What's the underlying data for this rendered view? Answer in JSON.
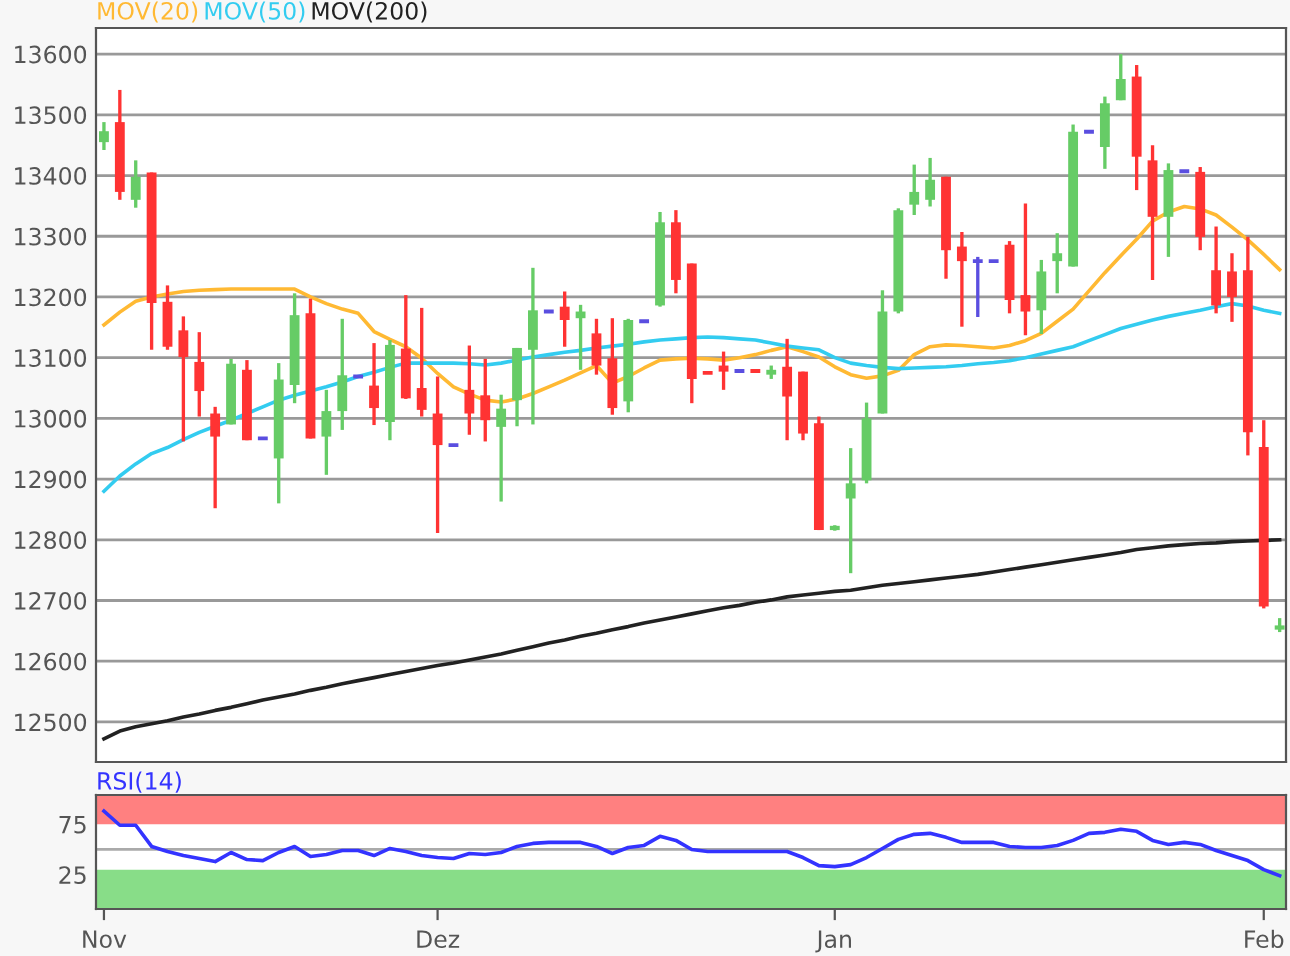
{
  "chart_data": [
    {
      "type": "candlestick",
      "categories": [
        null,
        null,
        null,
        null,
        null,
        null,
        null,
        null,
        null,
        null,
        null,
        null,
        null,
        null,
        null,
        null,
        null,
        null,
        null,
        null,
        null,
        null,
        null,
        null,
        null,
        null,
        null,
        null,
        null,
        null,
        null,
        null,
        null,
        null,
        null,
        null,
        null,
        null,
        null,
        null,
        null,
        null,
        null,
        null,
        null,
        null,
        null,
        null,
        null,
        null,
        null,
        null,
        null,
        null,
        null,
        null,
        null,
        null,
        null,
        null,
        null,
        null,
        null,
        null,
        null,
        null,
        null,
        null,
        null,
        null,
        null,
        null,
        null,
        null,
        null
      ],
      "ohlc": [
        [
          13455,
          13488,
          13442,
          13473
        ],
        [
          13488,
          13541,
          13360,
          13373
        ],
        [
          13360,
          13425,
          13347,
          13398
        ],
        [
          13405,
          13405,
          13113,
          13190
        ],
        [
          13192,
          13219,
          13113,
          13118
        ],
        [
          13145,
          13168,
          12962,
          13101
        ],
        [
          13093,
          13142,
          13003,
          13045
        ],
        [
          13008,
          13019,
          12852,
          12970
        ],
        [
          12990,
          13098,
          12990,
          13090
        ],
        [
          13080,
          13096,
          12964,
          12964
        ],
        [
          12967,
          12967,
          12967,
          12967
        ],
        [
          12934,
          13091,
          12860,
          13064
        ],
        [
          13055,
          13206,
          13025,
          13170
        ],
        [
          13173,
          13197,
          12967,
          12967
        ],
        [
          12970,
          13047,
          12907,
          13012
        ],
        [
          13012,
          13164,
          12981,
          13071
        ],
        [
          13069,
          13069,
          13069,
          13069
        ],
        [
          13054,
          13124,
          12989,
          13017
        ],
        [
          12994,
          13129,
          12964,
          13121
        ],
        [
          13115,
          13203,
          13032,
          13033
        ],
        [
          13050,
          13182,
          13003,
          13014
        ],
        [
          13008,
          13069,
          12811,
          12956
        ],
        [
          12956,
          12956,
          12956,
          12956
        ],
        [
          13047,
          13120,
          12973,
          13008
        ],
        [
          13038,
          13098,
          12962,
          12997
        ],
        [
          12986,
          13039,
          12863,
          13016
        ],
        [
          13030,
          13116,
          12987,
          13116
        ],
        [
          13113,
          13248,
          12990,
          13178
        ],
        [
          13176,
          13176,
          13176,
          13176
        ],
        [
          13184,
          13209,
          13118,
          13162
        ],
        [
          13165,
          13187,
          13080,
          13176
        ],
        [
          13140,
          13164,
          13072,
          13087
        ],
        [
          13099,
          13165,
          13006,
          13017
        ],
        [
          13028,
          13164,
          13010,
          13162
        ],
        [
          13160,
          13160,
          13160,
          13160
        ],
        [
          13186,
          13340,
          13184,
          13323
        ],
        [
          13323,
          13343,
          13206,
          13228
        ],
        [
          13255,
          13255,
          13025,
          13065
        ],
        [
          13075,
          13075,
          13075,
          13075
        ],
        [
          13087,
          13110,
          13047,
          13077
        ],
        [
          13078,
          13078,
          13078,
          13078
        ],
        [
          13078,
          13078,
          13078,
          13078
        ],
        [
          13072,
          13087,
          13065,
          13080
        ],
        [
          13085,
          13131,
          12964,
          13036
        ],
        [
          13077,
          13077,
          12964,
          12975
        ],
        [
          12992,
          13003,
          12816,
          12816
        ],
        [
          12816,
          12824,
          12815,
          12823
        ],
        [
          12868,
          12951,
          12745,
          12893
        ],
        [
          12898,
          13026,
          12893,
          13000
        ],
        [
          13008,
          13211,
          13008,
          13176
        ],
        [
          13176,
          13346,
          13173,
          13343
        ],
        [
          13352,
          13418,
          13335,
          13373
        ],
        [
          13360,
          13429,
          13349,
          13393
        ],
        [
          13398,
          13398,
          13230,
          13277
        ],
        [
          13283,
          13307,
          13151,
          13259
        ],
        [
          13259,
          13266,
          13167,
          13259
        ],
        [
          13259,
          13259,
          13259,
          13259
        ],
        [
          13286,
          13292,
          13173,
          13195
        ],
        [
          13203,
          13354,
          13137,
          13176
        ],
        [
          13178,
          13261,
          13139,
          13242
        ],
        [
          13259,
          13305,
          13206,
          13272
        ],
        [
          13250,
          13484,
          13250,
          13472
        ],
        [
          13472,
          13472,
          13472,
          13472
        ],
        [
          13447,
          13530,
          13411,
          13519
        ],
        [
          13524,
          13600,
          13524,
          13559
        ],
        [
          13563,
          13582,
          13376,
          13431
        ],
        [
          13425,
          13450,
          13228,
          13332
        ],
        [
          13332,
          13420,
          13266,
          13409
        ],
        [
          13407,
          13407,
          13407,
          13407
        ],
        [
          13406,
          13414,
          13277,
          13299
        ],
        [
          13244,
          13316,
          13173,
          13186
        ],
        [
          13242,
          13272,
          13159,
          13200
        ],
        [
          13244,
          13299,
          12939,
          12977
        ],
        [
          12953,
          12997,
          12687,
          12690
        ],
        [
          12652,
          12671,
          12648,
          12659
        ]
      ],
      "colors": [
        "#66cc66",
        "#ff3333",
        "#66cc66",
        "#ff3333",
        "#ff3333",
        "#ff3333",
        "#ff3333",
        "#ff3333",
        "#66cc66",
        "#ff3333",
        "#5a4ee0",
        "#66cc66",
        "#66cc66",
        "#ff3333",
        "#66cc66",
        "#66cc66",
        "#5a4ee0",
        "#ff3333",
        "#66cc66",
        "#ff3333",
        "#ff3333",
        "#ff3333",
        "#5a4ee0",
        "#ff3333",
        "#ff3333",
        "#66cc66",
        "#66cc66",
        "#66cc66",
        "#5a4ee0",
        "#ff3333",
        "#66cc66",
        "#ff3333",
        "#ff3333",
        "#66cc66",
        "#5a4ee0",
        "#66cc66",
        "#ff3333",
        "#ff3333",
        "#ff3333",
        "#ff3333",
        "#5a4ee0",
        "#ff3333",
        "#66cc66",
        "#ff3333",
        "#ff3333",
        "#ff3333",
        "#66cc66",
        "#66cc66",
        "#66cc66",
        "#66cc66",
        "#66cc66",
        "#66cc66",
        "#66cc66",
        "#ff3333",
        "#ff3333",
        "#5a4ee0",
        "#5a4ee0",
        "#ff3333",
        "#ff3333",
        "#66cc66",
        "#66cc66",
        "#66cc66",
        "#5a4ee0",
        "#66cc66",
        "#66cc66",
        "#ff3333",
        "#ff3333",
        "#66cc66",
        "#5a4ee0",
        "#ff3333",
        "#ff3333",
        "#ff3333",
        "#ff3333",
        "#ff3333",
        "#66cc66"
      ],
      "series": [
        {
          "type": "line",
          "name": "MOV(20)",
          "color": "#ffb933",
          "values": [
            13154,
            13175,
            13193,
            13200,
            13205,
            13209,
            13211,
            13212,
            13213,
            13213,
            13213,
            13213,
            13213,
            13200,
            13189,
            13180,
            13173,
            13143,
            13130,
            13118,
            13099,
            13074,
            13052,
            13040,
            13030,
            13027,
            13032,
            13041,
            13052,
            13063,
            13075,
            13087,
            13058,
            13069,
            13083,
            13096,
            13098,
            13099,
            13098,
            13096,
            13100,
            13105,
            13112,
            13118,
            13110,
            13101,
            13085,
            13072,
            13066,
            13070,
            13079,
            13105,
            13118,
            13121,
            13120,
            13118,
            13116,
            13120,
            13128,
            13140,
            13160,
            13180,
            13210,
            13240,
            13268,
            13295,
            13325,
            13340,
            13349,
            13345,
            13335,
            13315,
            13294,
            13270,
            13245
          ]
        },
        {
          "type": "line",
          "name": "MOV(50)",
          "color": "#33ccf0",
          "values": [
            12880,
            12905,
            12925,
            12942,
            12952,
            12965,
            12977,
            12987,
            12997,
            13008,
            13019,
            13030,
            13038,
            13045,
            13052,
            13060,
            13069,
            13076,
            13084,
            13091,
            13091,
            13091,
            13091,
            13090,
            13088,
            13091,
            13096,
            13101,
            13105,
            13109,
            13112,
            13116,
            13119,
            13122,
            13126,
            13129,
            13131,
            13133,
            13134,
            13133,
            13131,
            13129,
            13124,
            13119,
            13116,
            13113,
            13100,
            13091,
            13087,
            13084,
            13082,
            13083,
            13084,
            13085,
            13087,
            13090,
            13092,
            13095,
            13100,
            13106,
            13112,
            13118,
            13128,
            13138,
            13148,
            13155,
            13162,
            13168,
            13173,
            13178,
            13184,
            13189,
            13185,
            13178,
            13173
          ]
        },
        {
          "type": "line",
          "name": "MOV(200)",
          "color": "#222222",
          "values": [
            12472,
            12485,
            12492,
            12497,
            12502,
            12508,
            12513,
            12519,
            12524,
            12530,
            12536,
            12541,
            12546,
            12552,
            12557,
            12563,
            12568,
            12573,
            12578,
            12583,
            12588,
            12593,
            12597,
            12602,
            12607,
            12612,
            12618,
            12624,
            12630,
            12635,
            12641,
            12646,
            12652,
            12657,
            12663,
            12668,
            12673,
            12678,
            12683,
            12688,
            12692,
            12697,
            12701,
            12706,
            12709,
            12712,
            12715,
            12717,
            12721,
            12725,
            12728,
            12731,
            12734,
            12737,
            12740,
            12743,
            12747,
            12751,
            12755,
            12759,
            12763,
            12767,
            12771,
            12775,
            12779,
            12784,
            12787,
            12790,
            12792,
            12794,
            12795,
            12797,
            12798,
            12799,
            12800
          ]
        }
      ],
      "ylim": [
        12434,
        13643
      ],
      "yticks": [
        12500,
        12600,
        12700,
        12800,
        12900,
        13000,
        13100,
        13200,
        13300,
        13400,
        13500,
        13600
      ],
      "grid": "y",
      "legend": "top left",
      "tick_labels": "y"
    },
    {
      "type": "line",
      "categories": [
        "Nov",
        null,
        null,
        null,
        null,
        null,
        null,
        null,
        null,
        null,
        null,
        null,
        null,
        null,
        null,
        null,
        null,
        null,
        null,
        null,
        null,
        "Dez",
        null,
        null,
        null,
        null,
        null,
        null,
        null,
        null,
        null,
        null,
        null,
        null,
        null,
        null,
        null,
        null,
        null,
        null,
        null,
        null,
        null,
        null,
        null,
        null,
        "Jan",
        null,
        null,
        null,
        null,
        null,
        null,
        null,
        null,
        null,
        null,
        null,
        null,
        null,
        null,
        null,
        null,
        null,
        null,
        null,
        null,
        null,
        null,
        null,
        null,
        null,
        null,
        "Feb",
        null
      ],
      "series": [
        {
          "name": "RSI(14)",
          "color": "#3333ff",
          "values": [
            88,
            74,
            74,
            53,
            48,
            44,
            41,
            38,
            47,
            40,
            39,
            47,
            53,
            43,
            45,
            49,
            49,
            44,
            51,
            48,
            44,
            42,
            41,
            46,
            45,
            47,
            53,
            56,
            57,
            57,
            57,
            53,
            46,
            52,
            54,
            63,
            59,
            50,
            48,
            48,
            48,
            48,
            48,
            48,
            42,
            34,
            33,
            35,
            42,
            51,
            60,
            65,
            66,
            62,
            57,
            57,
            57,
            53,
            52,
            52,
            54,
            59,
            66,
            67,
            70,
            68,
            59,
            55,
            57,
            55,
            49,
            44,
            39,
            30,
            24
          ]
        }
      ],
      "ylim": [
        -9,
        104
      ],
      "yticks": [
        25,
        75
      ],
      "bands": [
        {
          "axis": "y",
          "from": 75,
          "to": 104,
          "color": "#ff8080"
        },
        {
          "axis": "y",
          "from": -9,
          "to": 30,
          "color": "#88dd88"
        }
      ],
      "ref_lines": [
        {
          "axis": "y",
          "value": 50,
          "color": "#aaaaaa"
        }
      ],
      "legend": "top left"
    }
  ]
}
